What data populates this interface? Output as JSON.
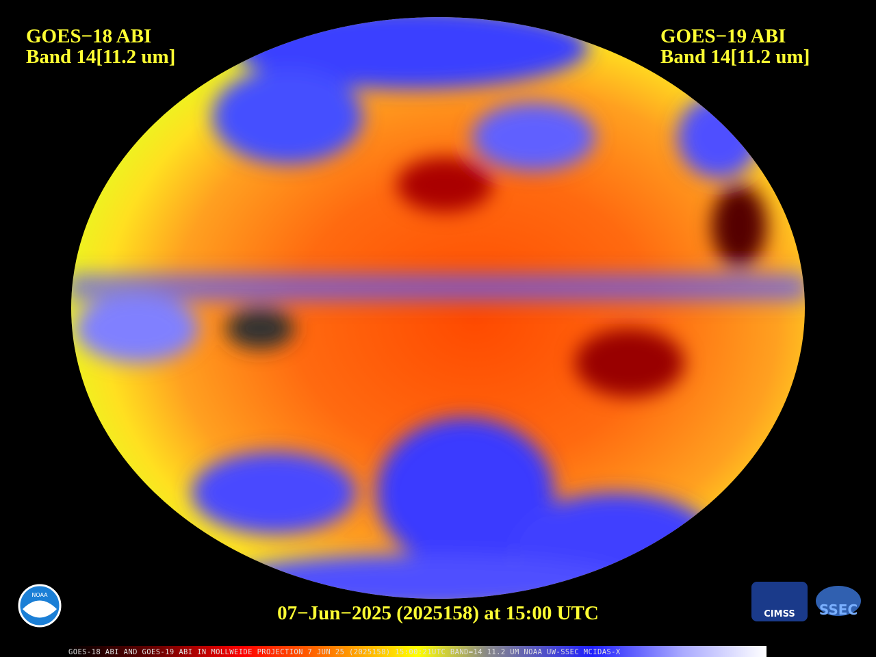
{
  "left_label": {
    "satellite": "GOES−18 ABI",
    "band": "Band 14[11.2 um]"
  },
  "right_label": {
    "satellite": "GOES−19 ABI",
    "band": "Band 14[11.2 um]"
  },
  "timestamp": "07−Jun−2025 (2025158) at 15:00 UTC",
  "footer": "GOES-18 ABI AND GOES-19 ABI IN MOLLWEIDE PROJECTION 7 JUN 25 (2025158) 15:00:21UTC BAND=14 11.2 UM NOAA UW-SSEC MCIDAS-X",
  "logos": {
    "noaa": "NOAA",
    "cimss": "CIMSS",
    "ssec": "SSEC"
  }
}
